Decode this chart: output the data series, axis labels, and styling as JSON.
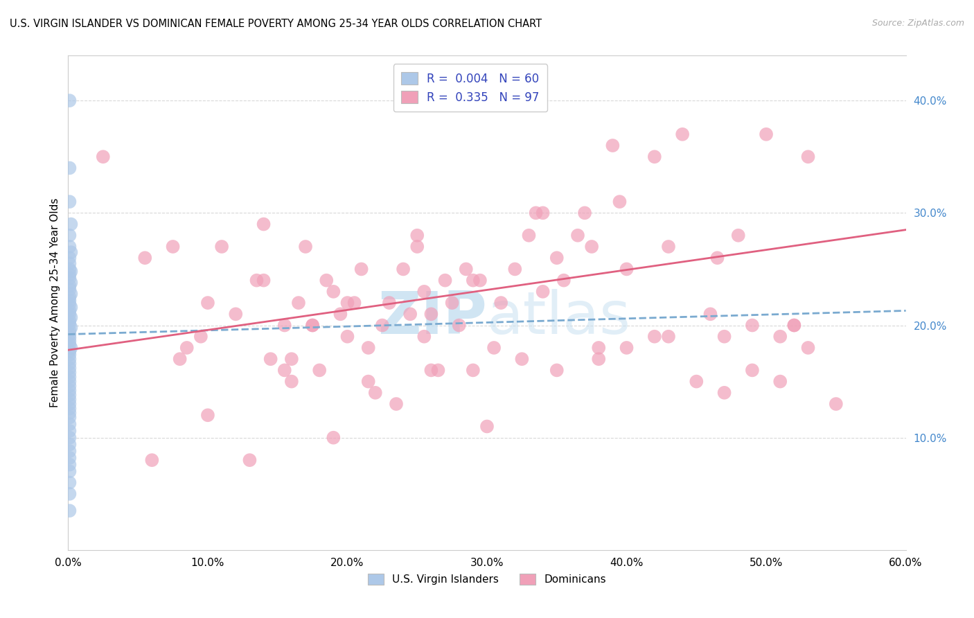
{
  "title": "U.S. VIRGIN ISLANDER VS DOMINICAN FEMALE POVERTY AMONG 25-34 YEAR OLDS CORRELATION CHART",
  "source": "Source: ZipAtlas.com",
  "ylabel": "Female Poverty Among 25-34 Year Olds",
  "xlim": [
    0.0,
    0.6
  ],
  "ylim": [
    0.0,
    0.44
  ],
  "xticks": [
    0.0,
    0.1,
    0.2,
    0.3,
    0.4,
    0.5,
    0.6
  ],
  "xtick_labels": [
    "0.0%",
    "10.0%",
    "20.0%",
    "30.0%",
    "40.0%",
    "50.0%",
    "60.0%"
  ],
  "ytick_labels_right": [
    "10.0%",
    "20.0%",
    "30.0%",
    "40.0%"
  ],
  "yticks_right": [
    0.1,
    0.2,
    0.3,
    0.4
  ],
  "blue_color": "#adc8e8",
  "pink_color": "#f0a0b8",
  "blue_line_color": "#7aaad0",
  "pink_line_color": "#e06080",
  "legend_R1": "0.004",
  "legend_N1": "60",
  "legend_R2": "0.335",
  "legend_N2": "97",
  "blue_scatter_x": [
    0.001,
    0.001,
    0.001,
    0.002,
    0.001,
    0.001,
    0.002,
    0.001,
    0.001,
    0.001,
    0.002,
    0.001,
    0.001,
    0.002,
    0.001,
    0.001,
    0.002,
    0.001,
    0.001,
    0.001,
    0.002,
    0.001,
    0.001,
    0.002,
    0.001,
    0.001,
    0.002,
    0.001,
    0.001,
    0.001,
    0.001,
    0.001,
    0.002,
    0.001,
    0.001,
    0.001,
    0.001,
    0.001,
    0.001,
    0.001,
    0.001,
    0.001,
    0.001,
    0.001,
    0.001,
    0.001,
    0.001,
    0.001,
    0.001,
    0.001,
    0.001,
    0.001,
    0.001,
    0.001,
    0.001,
    0.001,
    0.001,
    0.001,
    0.001,
    0.001
  ],
  "blue_scatter_y": [
    0.4,
    0.34,
    0.31,
    0.29,
    0.28,
    0.27,
    0.265,
    0.26,
    0.255,
    0.25,
    0.248,
    0.245,
    0.242,
    0.238,
    0.235,
    0.232,
    0.228,
    0.225,
    0.222,
    0.219,
    0.216,
    0.213,
    0.21,
    0.207,
    0.204,
    0.201,
    0.198,
    0.195,
    0.192,
    0.189,
    0.186,
    0.183,
    0.18,
    0.177,
    0.174,
    0.17,
    0.166,
    0.162,
    0.158,
    0.154,
    0.15,
    0.146,
    0.142,
    0.138,
    0.134,
    0.13,
    0.126,
    0.122,
    0.118,
    0.112,
    0.106,
    0.1,
    0.094,
    0.088,
    0.082,
    0.076,
    0.07,
    0.06,
    0.05,
    0.035
  ],
  "pink_scatter_x": [
    0.025,
    0.055,
    0.075,
    0.085,
    0.095,
    0.1,
    0.11,
    0.12,
    0.135,
    0.14,
    0.145,
    0.155,
    0.155,
    0.16,
    0.165,
    0.17,
    0.175,
    0.18,
    0.185,
    0.19,
    0.195,
    0.2,
    0.205,
    0.21,
    0.215,
    0.22,
    0.225,
    0.23,
    0.24,
    0.245,
    0.25,
    0.255,
    0.255,
    0.26,
    0.265,
    0.27,
    0.275,
    0.28,
    0.285,
    0.295,
    0.3,
    0.31,
    0.32,
    0.33,
    0.335,
    0.34,
    0.35,
    0.355,
    0.365,
    0.37,
    0.375,
    0.39,
    0.395,
    0.4,
    0.42,
    0.43,
    0.44,
    0.46,
    0.465,
    0.48,
    0.49,
    0.5,
    0.51,
    0.52,
    0.53,
    0.06,
    0.08,
    0.1,
    0.13,
    0.16,
    0.19,
    0.215,
    0.235,
    0.26,
    0.29,
    0.305,
    0.325,
    0.35,
    0.38,
    0.4,
    0.42,
    0.45,
    0.47,
    0.49,
    0.51,
    0.53,
    0.55,
    0.14,
    0.175,
    0.2,
    0.25,
    0.29,
    0.34,
    0.38,
    0.43,
    0.47,
    0.52
  ],
  "pink_scatter_y": [
    0.35,
    0.26,
    0.27,
    0.18,
    0.19,
    0.22,
    0.27,
    0.21,
    0.24,
    0.29,
    0.17,
    0.2,
    0.16,
    0.15,
    0.22,
    0.27,
    0.2,
    0.16,
    0.24,
    0.23,
    0.21,
    0.19,
    0.22,
    0.25,
    0.18,
    0.14,
    0.2,
    0.22,
    0.25,
    0.21,
    0.27,
    0.23,
    0.19,
    0.21,
    0.16,
    0.24,
    0.22,
    0.2,
    0.25,
    0.24,
    0.11,
    0.22,
    0.25,
    0.28,
    0.3,
    0.3,
    0.26,
    0.24,
    0.28,
    0.3,
    0.27,
    0.36,
    0.31,
    0.25,
    0.35,
    0.27,
    0.37,
    0.21,
    0.26,
    0.28,
    0.2,
    0.37,
    0.19,
    0.2,
    0.35,
    0.08,
    0.17,
    0.12,
    0.08,
    0.17,
    0.1,
    0.15,
    0.13,
    0.16,
    0.16,
    0.18,
    0.17,
    0.16,
    0.17,
    0.18,
    0.19,
    0.15,
    0.19,
    0.16,
    0.15,
    0.18,
    0.13,
    0.24,
    0.2,
    0.22,
    0.28,
    0.24,
    0.23,
    0.18,
    0.19,
    0.14,
    0.2
  ],
  "blue_trend_x": [
    0.0,
    0.6
  ],
  "blue_trend_y": [
    0.192,
    0.213
  ],
  "pink_trend_x": [
    0.0,
    0.6
  ],
  "pink_trend_y": [
    0.178,
    0.285
  ],
  "watermark_zip": "ZIP",
  "watermark_atlas": "atlas",
  "background_color": "#ffffff",
  "grid_color": "#d8d8d8",
  "right_label_color": "#4488cc",
  "legend_text_color": "#3344bb"
}
